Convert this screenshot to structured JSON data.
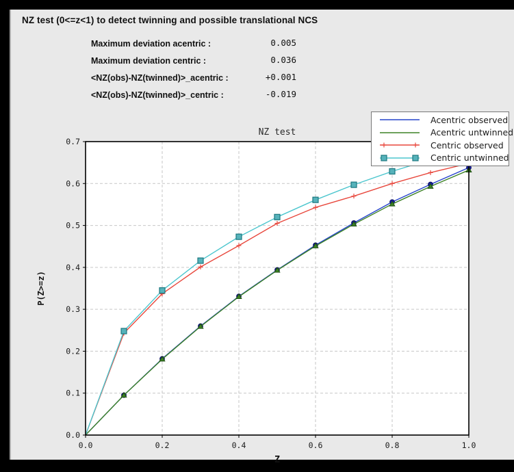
{
  "header": {
    "title": "NZ test (0<=z<1) to detect twinning and possible translational NCS"
  },
  "stats": {
    "rows": [
      {
        "label": "Maximum deviation acentric :",
        "value": "0.005"
      },
      {
        "label": "Maximum deviation centric :",
        "value": "0.036"
      },
      {
        "label": "<NZ(obs)-NZ(twinned)>_acentric :",
        "value": "+0.001"
      },
      {
        "label": "<NZ(obs)-NZ(twinned)>_centric :",
        "value": "-0.019"
      }
    ]
  },
  "chart_data": {
    "type": "line",
    "title": "NZ test",
    "xlabel": "Z",
    "ylabel": "P(Z>=z)",
    "xlim": [
      0.0,
      1.0
    ],
    "ylim": [
      0.0,
      0.7
    ],
    "xticks": [
      0.0,
      0.2,
      0.4,
      0.6,
      0.8,
      1.0
    ],
    "xtick_labels": [
      "0.0",
      "0.2",
      "0.4",
      "0.6",
      "0.8",
      "1.0"
    ],
    "yticks": [
      0.0,
      0.1,
      0.2,
      0.3,
      0.4,
      0.5,
      0.6,
      0.7
    ],
    "ytick_labels": [
      "0.0",
      "0.1",
      "0.2",
      "0.3",
      "0.4",
      "0.5",
      "0.6",
      "0.7"
    ],
    "grid": true,
    "grid_color": "#c6c6c6",
    "legend_position": "top-right",
    "x": [
      0.0,
      0.1,
      0.2,
      0.3,
      0.4,
      0.5,
      0.6,
      0.7,
      0.8,
      0.9,
      1.0
    ],
    "series": [
      {
        "name": "Acentric observed",
        "color": "#2543cb",
        "marker": "circle",
        "marker_fill": "#151b9e",
        "marker_edge": "#0d1166",
        "values": [
          0.0,
          0.095,
          0.182,
          0.26,
          0.331,
          0.394,
          0.453,
          0.506,
          0.556,
          0.598,
          0.638
        ]
      },
      {
        "name": "Acentric untwinned",
        "color": "#3d8226",
        "marker": "triangle",
        "marker_fill": "#3d8226",
        "marker_edge": "#1e4d12",
        "values": [
          0.0,
          0.095,
          0.181,
          0.259,
          0.33,
          0.393,
          0.451,
          0.503,
          0.551,
          0.593,
          0.632
        ]
      },
      {
        "name": "Centric observed",
        "color": "#e8473c",
        "marker": "plus",
        "marker_fill": "#e8473c",
        "marker_edge": "#e8473c",
        "values": [
          0.0,
          0.243,
          0.337,
          0.401,
          0.452,
          0.505,
          0.543,
          0.57,
          0.6,
          0.626,
          0.648
        ]
      },
      {
        "name": "Centric untwinned",
        "color": "#4cc6ce",
        "marker": "square",
        "marker_fill": "#56b2ba",
        "marker_edge": "#1d7880",
        "values": [
          0.0,
          0.248,
          0.345,
          0.416,
          0.473,
          0.52,
          0.561,
          0.597,
          0.629,
          0.657,
          0.683
        ]
      }
    ]
  }
}
